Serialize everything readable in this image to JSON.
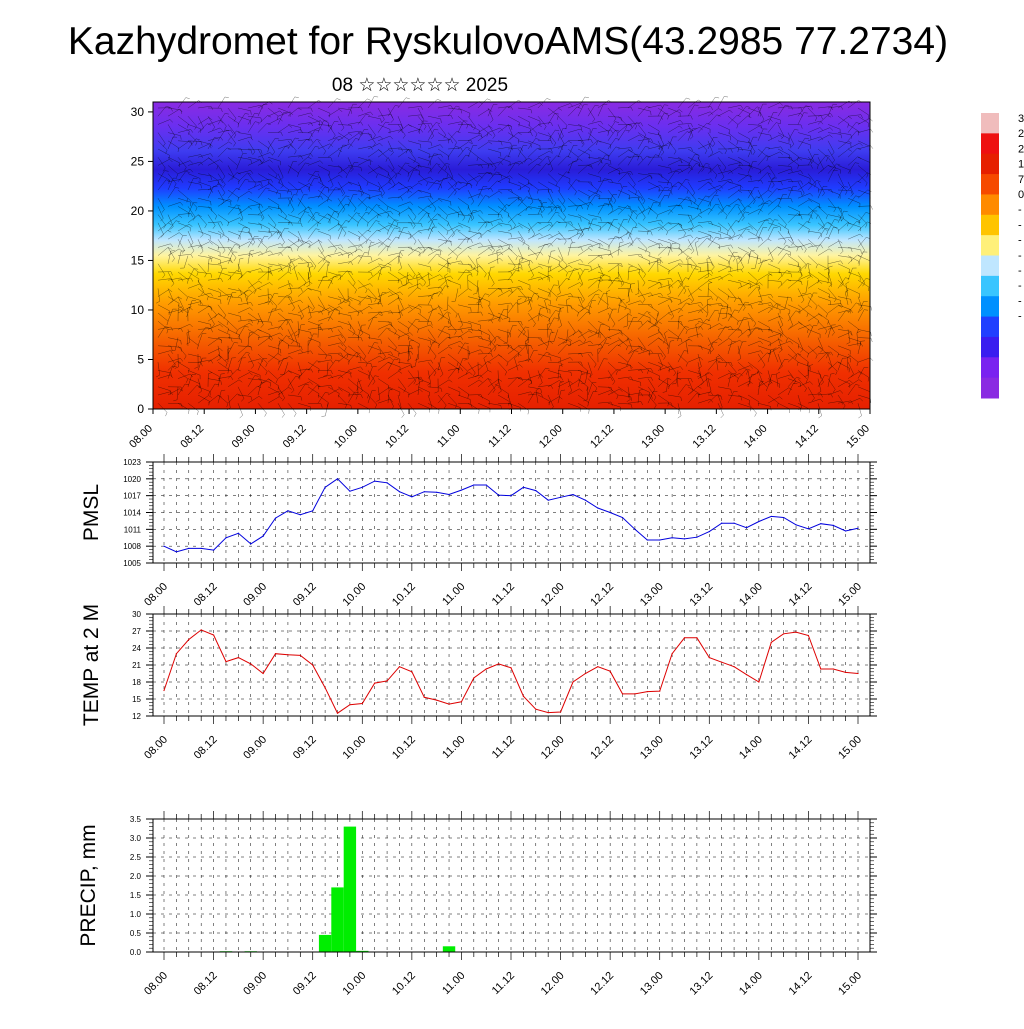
{
  "title": "Kazhydromet for RyskulovoAMS(43.2985 77.2734)",
  "subtitle": "08 ☆☆☆☆☆☆ 2025",
  "colorbar": {
    "labels": [
      "3",
      "2",
      "2",
      "1",
      "7",
      "0",
      "-",
      "-",
      "-",
      "-",
      "-",
      "-",
      "-",
      "-"
    ],
    "colors": [
      "#f0bcbc",
      "#ee1010",
      "#e62000",
      "#f64a00",
      "#ff8a00",
      "#ffc400",
      "#fff07a",
      "#bfe6ff",
      "#39c5ff",
      "#0090ff",
      "#2040ff",
      "#3a1df0",
      "#7a22f0",
      "#8a2be2"
    ]
  },
  "time_labels": [
    "08.00",
    "08.12",
    "09.00",
    "09.12",
    "10.00",
    "10.12",
    "11.00",
    "11.12",
    "12.00",
    "12.12",
    "13.00",
    "13.12",
    "14.00",
    "14.12",
    "15.00"
  ],
  "chart_data": [
    {
      "type": "heatmap",
      "name_note": "",
      "x_ticks": [
        "08.00",
        "08.12",
        "09.00",
        "09.12",
        "10.00",
        "10.12",
        "11.00",
        "11.12",
        "12.00",
        "12.12",
        "13.00",
        "13.12",
        "14.00",
        "14.12",
        "15.00"
      ],
      "yticks": [
        0,
        5,
        10,
        15,
        20,
        25,
        30
      ],
      "ylim": [
        0,
        31
      ],
      "color_bands_bottom_to_top": [
        "#e62000",
        "#f04000",
        "#ff7a00",
        "#ffc000",
        "#fff07a",
        "#bfe6ff",
        "#39c5ff",
        "#0078ff",
        "#1f2fff",
        "#2a1cd8",
        "#3a3cf0",
        "#6a30f0",
        "#8a2be2"
      ],
      "overlay": "wind barbs",
      "grid": false
    },
    {
      "type": "line",
      "ylabel": "PMSL",
      "color": "#0000dd",
      "ylim": [
        1005,
        1023
      ],
      "yticks": [
        1005,
        1008,
        1011,
        1014,
        1017,
        1020,
        1023
      ],
      "x_ticks": [
        "08.00",
        "08.12",
        "09.00",
        "09.12",
        "10.00",
        "10.12",
        "11.00",
        "11.12",
        "12.00",
        "12.12",
        "13.00",
        "13.12",
        "14.00",
        "14.12",
        "15.00"
      ],
      "values": [
        1008.0,
        1007.0,
        1007.6,
        1007.6,
        1007.3,
        1009.5,
        1010.3,
        1008.4,
        1009.8,
        1013.0,
        1014.3,
        1013.6,
        1014.3,
        1018.5,
        1020.0,
        1017.8,
        1018.5,
        1019.6,
        1019.3,
        1017.7,
        1016.8,
        1017.7,
        1017.6,
        1017.2,
        1018.0,
        1018.9,
        1018.9,
        1017.1,
        1017.0,
        1018.5,
        1017.9,
        1016.2,
        1016.7,
        1017.2,
        1016.2,
        1014.8,
        1014.0,
        1013.1,
        1011.0,
        1009.1,
        1009.1,
        1009.5,
        1009.3,
        1009.6,
        1010.6,
        1012.1,
        1012.1,
        1011.3,
        1012.4,
        1013.3,
        1013.1,
        1011.8,
        1011.1,
        1012.0,
        1011.7,
        1010.7,
        1011.2
      ],
      "grid": true
    },
    {
      "type": "line",
      "ylabel": "TEMP at 2 M",
      "color": "#dd0000",
      "ylim": [
        12,
        30
      ],
      "yticks": [
        12,
        15,
        18,
        21,
        24,
        27,
        30
      ],
      "x_ticks": [
        "08.00",
        "08.12",
        "09.00",
        "09.12",
        "10.00",
        "10.12",
        "11.00",
        "11.12",
        "12.00",
        "12.12",
        "13.00",
        "13.12",
        "14.00",
        "14.12",
        "15.00"
      ],
      "values": [
        16.5,
        23.0,
        25.5,
        27.2,
        26.3,
        21.6,
        22.3,
        21.2,
        19.5,
        23.0,
        22.8,
        22.7,
        21.0,
        17.0,
        12.5,
        14.0,
        14.2,
        17.8,
        18.2,
        20.7,
        19.8,
        15.3,
        14.8,
        14.1,
        14.5,
        18.7,
        20.3,
        21.2,
        20.5,
        15.5,
        13.2,
        12.6,
        12.7,
        18.0,
        19.5,
        20.7,
        19.9,
        15.9,
        15.9,
        16.3,
        16.4,
        23.0,
        25.8,
        25.8,
        22.3,
        21.5,
        20.7,
        19.3,
        18.0,
        25.0,
        26.5,
        26.8,
        26.2,
        20.3,
        20.3,
        19.7,
        19.5
      ],
      "grid": true
    },
    {
      "type": "bar",
      "ylabel": "PRECIP, mm",
      "color": "#00ee00",
      "ylim": [
        0,
        3.5
      ],
      "yticks": [
        "0.0",
        "0.5",
        "1.0",
        "1.5",
        "2.0",
        "2.5",
        "3.0",
        "3.5"
      ],
      "x_ticks": [
        "08.00",
        "08.12",
        "09.00",
        "09.12",
        "10.00",
        "10.12",
        "11.00",
        "11.12",
        "12.00",
        "12.12",
        "13.00",
        "13.12",
        "14.00",
        "14.12",
        "15.00"
      ],
      "values": [
        0,
        0,
        0,
        0,
        0,
        0.02,
        0,
        0.02,
        0,
        0,
        0,
        0,
        0,
        0.45,
        1.7,
        3.3,
        0.03,
        0,
        0,
        0,
        0,
        0,
        0,
        0.15,
        0,
        0,
        0,
        0,
        0,
        0,
        0,
        0,
        0,
        0,
        0,
        0,
        0,
        0,
        0,
        0,
        0,
        0,
        0,
        0,
        0,
        0,
        0,
        0,
        0,
        0,
        0,
        0,
        0,
        0,
        0,
        0,
        0
      ],
      "grid": true
    }
  ]
}
